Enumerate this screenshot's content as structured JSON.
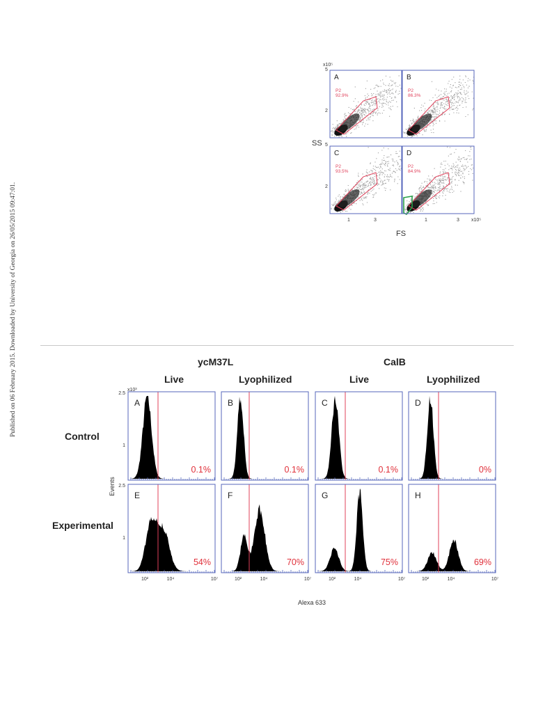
{
  "margin_note": "Published on 06 February 2015. Downloaded by University of Georgia on 26/05/2015 09:47:01.",
  "scatter_figure": {
    "y_axis_label": "SS",
    "x_axis_label": "FS",
    "y_exponent": "x10⁵",
    "x_exponent": "x10⁵",
    "y_ticks": [
      "5",
      "2"
    ],
    "x_ticks": [
      "1",
      "3"
    ],
    "gate_color": "#e0405a",
    "second_gate_color": "#2aa04a",
    "frame_color": "#5566bb",
    "panels": [
      {
        "letter": "A",
        "gate_name": "P2",
        "gate_percent": "92.9%"
      },
      {
        "letter": "B",
        "gate_name": "P2",
        "gate_percent": "86.3%"
      },
      {
        "letter": "C",
        "gate_name": "P2",
        "gate_percent": "93.5%"
      },
      {
        "letter": "D",
        "gate_name": "P2",
        "gate_percent": "84.9%"
      }
    ]
  },
  "histogram_figure": {
    "groups": [
      "ycM37L",
      "CalB"
    ],
    "columns": [
      "Live",
      "Lyophilized",
      "Live",
      "Lyophilized"
    ],
    "rows": [
      "Control",
      "Experimental"
    ],
    "y_axis_label": "Events",
    "y_exponent": "x10³",
    "y_ticks": [
      "2.5",
      "1"
    ],
    "x_axis_label": "Alexa 633",
    "x_tick_labels": [
      "10²",
      "10⁴",
      "10⁷"
    ],
    "frame_color": "#5566bb",
    "threshold_color": "#e0405a",
    "percent_color": "#e0303a",
    "panels": [
      {
        "letter": "A",
        "percent": "0.1%"
      },
      {
        "letter": "B",
        "percent": "0.1%"
      },
      {
        "letter": "C",
        "percent": "0.1%"
      },
      {
        "letter": "D",
        "percent": "0%"
      },
      {
        "letter": "E",
        "percent": "54%"
      },
      {
        "letter": "F",
        "percent": "70%"
      },
      {
        "letter": "G",
        "percent": "75%"
      },
      {
        "letter": "H",
        "percent": "69%"
      }
    ]
  }
}
